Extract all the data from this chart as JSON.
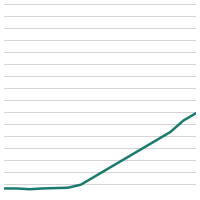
{
  "x": [
    2008,
    2009,
    2010,
    2011,
    2012,
    2013,
    2014,
    2015,
    2016,
    2017,
    2018,
    2019,
    2020,
    2021,
    2022,
    2023
  ],
  "y": [
    2,
    2,
    1.8,
    2,
    2.1,
    2.2,
    3,
    5,
    7,
    9,
    11,
    13,
    15,
    17,
    20,
    22
  ],
  "line_color": "#1a7a6e",
  "line_width": 1.8,
  "background_color": "#ffffff",
  "grid_color": "#cccccc",
  "ylim": [
    0,
    51
  ],
  "xlim": [
    2008,
    2023
  ],
  "grid_linewidth": 0.6,
  "num_gridlines": 16
}
